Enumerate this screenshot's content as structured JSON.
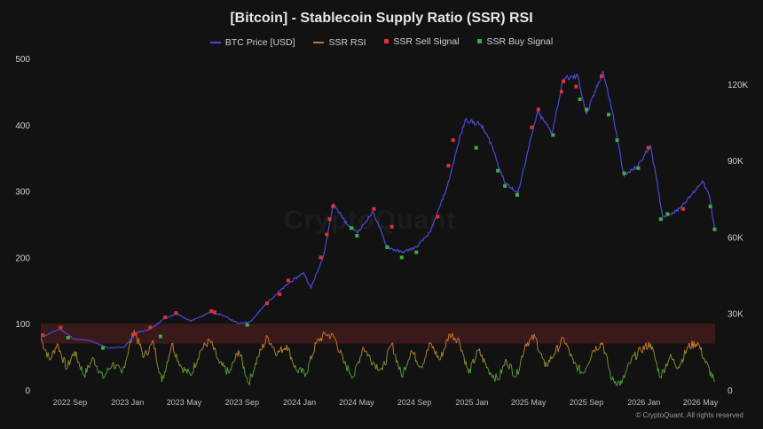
{
  "chart_data": {
    "type": "line",
    "title": "[Bitcoin] - Stablecoin Supply Ratio (SSR) RSI",
    "legend_position": "top-center",
    "grid": false,
    "band": {
      "from": 70,
      "to": 100,
      "color": "#5a1f1f"
    },
    "left_axis": {
      "ylim": [
        0,
        500
      ],
      "ticks": [
        "0",
        "100",
        "200",
        "300",
        "400",
        "500"
      ],
      "tick_values": [
        0,
        100,
        200,
        300,
        400,
        500
      ]
    },
    "right_axis": {
      "ylim": [
        0,
        130000
      ],
      "ticks": [
        "0",
        "30K",
        "60K",
        "90K",
        "120K"
      ],
      "tick_values": [
        0,
        30000,
        60000,
        90000,
        120000
      ]
    },
    "x_ticks": [
      "2022 Sep",
      "2023 Jan",
      "2023 May",
      "2023 Sep",
      "2024 Jan",
      "2024 May",
      "2024 Sep",
      "2025 Jan",
      "2025 May",
      "2025 Sep",
      "2026 Jan",
      "2026 May"
    ],
    "x_tick_dates": [
      "2022-09-01",
      "2023-01-01",
      "2023-05-01",
      "2023-09-01",
      "2024-01-01",
      "2024-05-01",
      "2024-09-01",
      "2025-01-01",
      "2025-05-01",
      "2025-09-01",
      "2026-01-01",
      "2026-05-01"
    ],
    "xlim": [
      "2022-07-01",
      "2026-06-01"
    ],
    "series": [
      {
        "name": "BTC Price [USD]",
        "axis": "right",
        "color": "#4a4ad8",
        "points": [
          [
            "2022-07-01",
            20500
          ],
          [
            "2022-08-10",
            24000
          ],
          [
            "2022-09-10",
            20000
          ],
          [
            "2022-10-15",
            19300
          ],
          [
            "2022-11-20",
            16500
          ],
          [
            "2022-12-25",
            16800
          ],
          [
            "2023-01-20",
            22500
          ],
          [
            "2023-02-20",
            24000
          ],
          [
            "2023-03-20",
            28000
          ],
          [
            "2023-04-15",
            30000
          ],
          [
            "2023-05-15",
            27000
          ],
          [
            "2023-06-25",
            30500
          ],
          [
            "2023-07-20",
            29500
          ],
          [
            "2023-08-25",
            26000
          ],
          [
            "2023-09-20",
            27000
          ],
          [
            "2023-10-25",
            34500
          ],
          [
            "2023-12-10",
            42000
          ],
          [
            "2024-01-10",
            46000
          ],
          [
            "2024-01-25",
            40000
          ],
          [
            "2024-02-20",
            52000
          ],
          [
            "2024-03-13",
            73000
          ],
          [
            "2024-04-15",
            64000
          ],
          [
            "2024-05-05",
            62000
          ],
          [
            "2024-06-05",
            70000
          ],
          [
            "2024-07-05",
            56000
          ],
          [
            "2024-08-05",
            54000
          ],
          [
            "2024-09-05",
            56000
          ],
          [
            "2024-10-05",
            62000
          ],
          [
            "2024-11-10",
            80000
          ],
          [
            "2024-12-05",
            98000
          ],
          [
            "2024-12-18",
            106000
          ],
          [
            "2025-01-20",
            104000
          ],
          [
            "2025-02-10",
            97000
          ],
          [
            "2025-03-10",
            82000
          ],
          [
            "2025-04-08",
            77000
          ],
          [
            "2025-05-20",
            109000
          ],
          [
            "2025-06-20",
            101000
          ],
          [
            "2025-07-14",
            122000
          ],
          [
            "2025-08-14",
            123000
          ],
          [
            "2025-09-01",
            108000
          ],
          [
            "2025-10-06",
            125000
          ],
          [
            "2025-10-25",
            110000
          ],
          [
            "2025-11-20",
            84000
          ],
          [
            "2025-12-20",
            88000
          ],
          [
            "2026-01-15",
            96000
          ],
          [
            "2026-02-10",
            68000
          ],
          [
            "2026-03-10",
            70000
          ],
          [
            "2026-04-10",
            76000
          ],
          [
            "2026-05-05",
            82000
          ],
          [
            "2026-05-20",
            76000
          ],
          [
            "2026-05-31",
            63000
          ]
        ]
      },
      {
        "name": "SSR RSI",
        "axis": "left",
        "color": "#c0762f",
        "points": [
          [
            "2022-07-01",
            78
          ],
          [
            "2022-07-20",
            45
          ],
          [
            "2022-08-05",
            70
          ],
          [
            "2022-08-25",
            32
          ],
          [
            "2022-09-10",
            58
          ],
          [
            "2022-10-01",
            22
          ],
          [
            "2022-10-20",
            48
          ],
          [
            "2022-11-10",
            18
          ],
          [
            "2022-11-30",
            40
          ],
          [
            "2022-12-20",
            25
          ],
          [
            "2023-01-15",
            90
          ],
          [
            "2023-02-05",
            50
          ],
          [
            "2023-02-25",
            72
          ],
          [
            "2023-03-15",
            12
          ],
          [
            "2023-04-05",
            70
          ],
          [
            "2023-04-25",
            35
          ],
          [
            "2023-05-15",
            22
          ],
          [
            "2023-06-05",
            60
          ],
          [
            "2023-06-25",
            75
          ],
          [
            "2023-07-15",
            40
          ],
          [
            "2023-08-05",
            25
          ],
          [
            "2023-08-25",
            60
          ],
          [
            "2023-09-15",
            10
          ],
          [
            "2023-10-05",
            50
          ],
          [
            "2023-10-25",
            80
          ],
          [
            "2023-11-15",
            55
          ],
          [
            "2023-12-05",
            68
          ],
          [
            "2023-12-25",
            30
          ],
          [
            "2024-01-15",
            25
          ],
          [
            "2024-02-05",
            70
          ],
          [
            "2024-02-25",
            85
          ],
          [
            "2024-03-15",
            80
          ],
          [
            "2024-04-05",
            40
          ],
          [
            "2024-04-25",
            20
          ],
          [
            "2024-05-15",
            65
          ],
          [
            "2024-06-05",
            42
          ],
          [
            "2024-06-25",
            30
          ],
          [
            "2024-07-15",
            70
          ],
          [
            "2024-08-05",
            20
          ],
          [
            "2024-08-25",
            60
          ],
          [
            "2024-09-15",
            35
          ],
          [
            "2024-10-05",
            70
          ],
          [
            "2024-10-25",
            45
          ],
          [
            "2024-11-15",
            85
          ],
          [
            "2024-12-05",
            75
          ],
          [
            "2024-12-25",
            25
          ],
          [
            "2025-01-15",
            60
          ],
          [
            "2025-02-05",
            30
          ],
          [
            "2025-02-25",
            15
          ],
          [
            "2025-03-15",
            45
          ],
          [
            "2025-04-05",
            20
          ],
          [
            "2025-04-25",
            70
          ],
          [
            "2025-05-15",
            80
          ],
          [
            "2025-06-05",
            35
          ],
          [
            "2025-06-25",
            55
          ],
          [
            "2025-07-15",
            78
          ],
          [
            "2025-08-05",
            40
          ],
          [
            "2025-08-25",
            25
          ],
          [
            "2025-09-15",
            60
          ],
          [
            "2025-10-05",
            72
          ],
          [
            "2025-10-25",
            15
          ],
          [
            "2025-11-15",
            10
          ],
          [
            "2025-12-05",
            45
          ],
          [
            "2025-12-25",
            60
          ],
          [
            "2026-01-15",
            70
          ],
          [
            "2026-02-05",
            20
          ],
          [
            "2026-02-25",
            50
          ],
          [
            "2026-03-15",
            35
          ],
          [
            "2026-04-05",
            65
          ],
          [
            "2026-04-25",
            72
          ],
          [
            "2026-05-10",
            45
          ],
          [
            "2026-05-31",
            12
          ]
        ]
      },
      {
        "name": "SSR Sell Signal",
        "axis": "right",
        "color": "#e03030",
        "points": [
          [
            "2022-07-05",
            21500
          ],
          [
            "2022-08-12",
            24500
          ],
          [
            "2023-01-18",
            22000
          ],
          [
            "2023-02-18",
            24500
          ],
          [
            "2023-03-22",
            28500
          ],
          [
            "2023-04-14",
            30200
          ],
          [
            "2023-06-28",
            31000
          ],
          [
            "2023-07-05",
            30500
          ],
          [
            "2023-10-24",
            34000
          ],
          [
            "2023-11-20",
            37500
          ],
          [
            "2023-12-08",
            43000
          ],
          [
            "2024-02-15",
            52000
          ],
          [
            "2024-02-28",
            61000
          ],
          [
            "2024-03-05",
            67000
          ],
          [
            "2024-03-12",
            72000
          ],
          [
            "2024-06-07",
            71000
          ],
          [
            "2024-07-15",
            64000
          ],
          [
            "2024-10-20",
            68000
          ],
          [
            "2024-11-12",
            88000
          ],
          [
            "2024-11-22",
            98000
          ],
          [
            "2025-05-08",
            103000
          ],
          [
            "2025-05-22",
            110000
          ],
          [
            "2025-07-10",
            117000
          ],
          [
            "2025-07-14",
            121000
          ],
          [
            "2025-08-10",
            119000
          ],
          [
            "2025-10-03",
            123000
          ],
          [
            "2026-01-10",
            95000
          ],
          [
            "2026-03-25",
            71000
          ]
        ]
      },
      {
        "name": "SSR Buy Signal",
        "axis": "right",
        "color": "#3fae3f",
        "points": [
          [
            "2022-08-28",
            20500
          ],
          [
            "2022-11-10",
            16500
          ],
          [
            "2023-03-12",
            21000
          ],
          [
            "2023-09-12",
            25500
          ],
          [
            "2024-04-20",
            63500
          ],
          [
            "2024-05-02",
            60500
          ],
          [
            "2024-07-05",
            56000
          ],
          [
            "2024-08-05",
            52000
          ],
          [
            "2024-09-05",
            54000
          ],
          [
            "2025-01-10",
            95000
          ],
          [
            "2025-02-25",
            86000
          ],
          [
            "2025-03-12",
            80000
          ],
          [
            "2025-04-07",
            76500
          ],
          [
            "2025-06-22",
            100000
          ],
          [
            "2025-08-18",
            114000
          ],
          [
            "2025-09-01",
            110000
          ],
          [
            "2025-10-18",
            108000
          ],
          [
            "2025-11-05",
            98000
          ],
          [
            "2025-11-20",
            85000
          ],
          [
            "2025-12-20",
            87000
          ],
          [
            "2026-02-06",
            67000
          ],
          [
            "2026-02-20",
            69000
          ],
          [
            "2026-05-22",
            72000
          ],
          [
            "2026-05-31",
            63000
          ]
        ]
      }
    ]
  },
  "watermark": "CryptoQuant",
  "copyright": "© CryptoQuant. All rights reserved"
}
